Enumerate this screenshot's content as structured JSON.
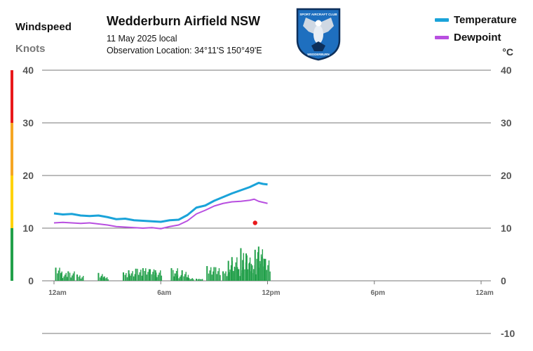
{
  "header": {
    "title": "Wedderburn Airfield NSW",
    "date": "11 May 2025 local",
    "location": "Observation Location: 34°11'S 150°49'E"
  },
  "left_axis": {
    "title": "Windspeed",
    "units": "Knots"
  },
  "right_axis": {
    "units": "°C"
  },
  "legend": [
    {
      "label": "Temperature",
      "color": "#1aa3d9"
    },
    {
      "label": "Dewpoint",
      "color": "#b84fe0"
    }
  ],
  "logo": {
    "text_top": "SPORT AIRCRAFT CLUB",
    "text_bottom": "WEDDERBURN"
  },
  "chart_data": {
    "type": "line",
    "title": "Wedderburn Airfield NSW",
    "x_tick_labels": [
      "12am",
      "6am",
      "12pm",
      "6pm",
      "12am"
    ],
    "x_hours_range": [
      0,
      24
    ],
    "left_ticks": [
      "40",
      "30",
      "20",
      "10",
      "0"
    ],
    "right_ticks": [
      "40",
      "30",
      "20",
      "10",
      "0",
      "-10"
    ],
    "ylim_knots": [
      0,
      40
    ],
    "ylim_celsius": [
      -10,
      40
    ],
    "wind_scale_bands": [
      {
        "from": 0,
        "to": 10,
        "color": "#22a04a"
      },
      {
        "from": 10,
        "to": 20,
        "color": "#ffd200"
      },
      {
        "from": 20,
        "to": 30,
        "color": "#f5a623"
      },
      {
        "from": 30,
        "to": 40,
        "color": "#e8191b"
      }
    ],
    "series": [
      {
        "name": "Temperature",
        "color": "#1aa3d9",
        "x_hours": [
          0,
          0.5,
          1,
          1.5,
          2,
          2.5,
          3,
          3.5,
          4,
          4.5,
          5,
          5.5,
          6,
          6.5,
          7,
          7.5,
          8,
          8.5,
          9,
          9.5,
          10,
          10.5,
          11,
          11.25,
          11.5,
          11.75,
          12
        ],
        "values": [
          12.8,
          12.6,
          12.7,
          12.4,
          12.3,
          12.4,
          12.1,
          11.7,
          11.8,
          11.5,
          11.4,
          11.3,
          11.2,
          11.5,
          11.6,
          12.5,
          13.9,
          14.3,
          15.2,
          15.9,
          16.6,
          17.2,
          17.8,
          18.2,
          18.6,
          18.4,
          18.3
        ]
      },
      {
        "name": "Dewpoint",
        "color": "#b84fe0",
        "x_hours": [
          0,
          0.5,
          1,
          1.5,
          2,
          2.5,
          3,
          3.5,
          4,
          4.5,
          5,
          5.5,
          6,
          6.5,
          7,
          7.5,
          8,
          8.5,
          9,
          9.5,
          10,
          10.5,
          11,
          11.25,
          11.5,
          11.75,
          12
        ],
        "values": [
          11.0,
          11.1,
          11.0,
          10.9,
          11.0,
          10.8,
          10.6,
          10.3,
          10.2,
          10.1,
          10.0,
          10.1,
          9.9,
          10.3,
          10.6,
          11.4,
          12.7,
          13.4,
          14.2,
          14.7,
          15.0,
          15.1,
          15.3,
          15.5,
          15.1,
          14.9,
          14.7
        ]
      }
    ],
    "marker": {
      "x_hours": 11.3,
      "value_celsius": 11,
      "color": "#e8191b"
    },
    "wind": {
      "x_hours": [
        0.1,
        0.4,
        0.8,
        1.3,
        2.5,
        2.7,
        3.9,
        4.2,
        4.6,
        5.0,
        5.4,
        5.7,
        6.6,
        6.8,
        7.2,
        7.5,
        8.0,
        8.6,
        9.0,
        9.5,
        9.8,
        10.0,
        10.3,
        10.5,
        10.8,
        11.0,
        11.3,
        11.5,
        11.8,
        12.0
      ],
      "values": [
        2.5,
        1.5,
        1.8,
        1.2,
        1.5,
        0.8,
        1.6,
        2.0,
        2.3,
        2.4,
        2.2,
        2.0,
        2.4,
        1.4,
        2.0,
        0.6,
        0.4,
        2.8,
        2.6,
        1.8,
        3.8,
        4.5,
        2.6,
        6.2,
        5.2,
        3.5,
        5.9,
        6.5,
        4.2,
        0.0
      ]
    }
  }
}
